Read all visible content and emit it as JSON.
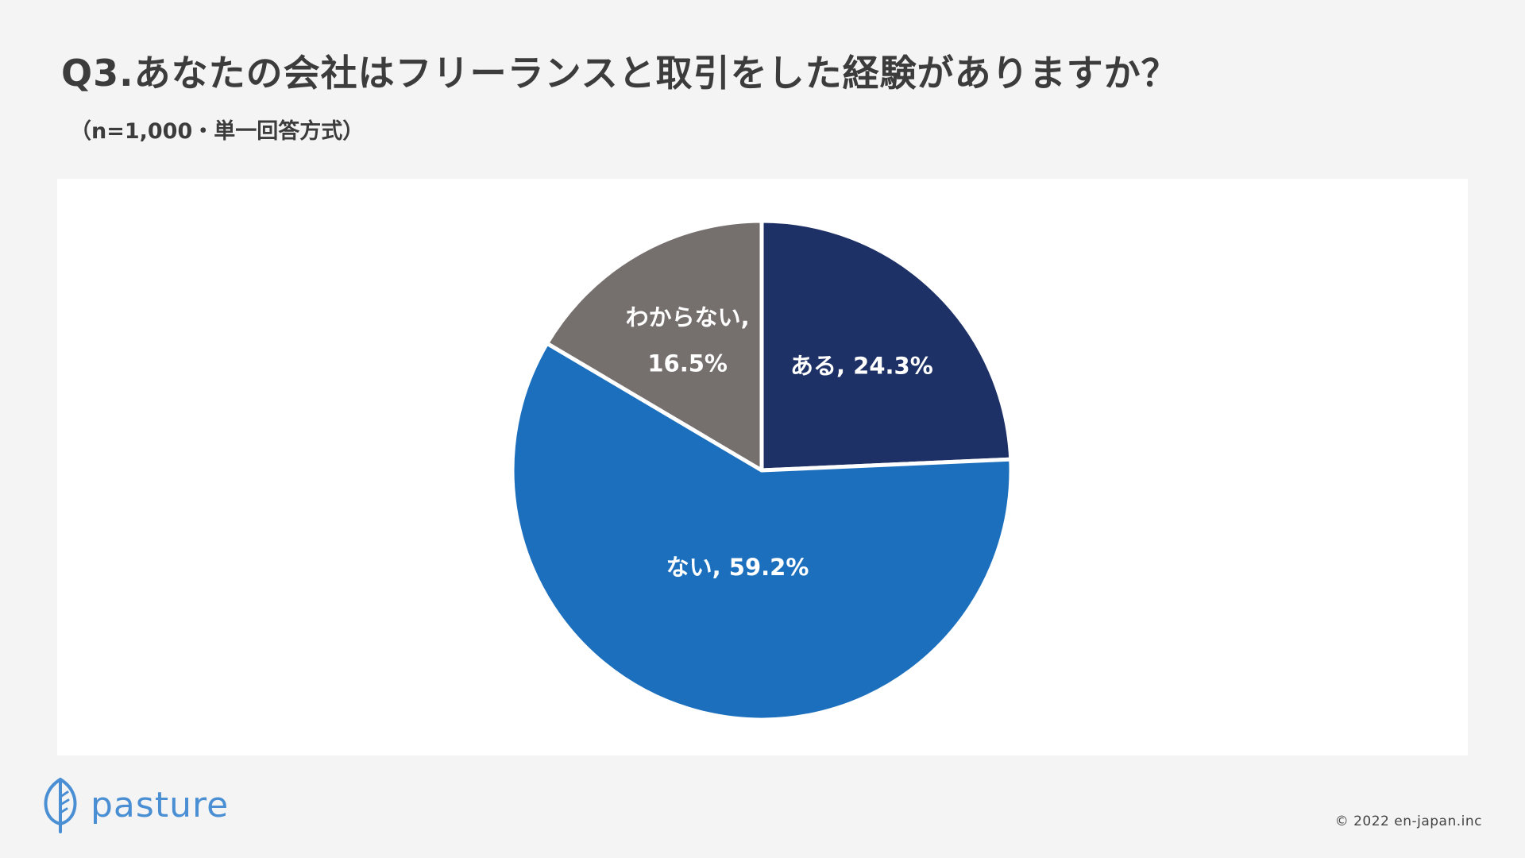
{
  "header": {
    "title": "Q3.あなたの会社はフリーランスと取引をした経験がありますか？",
    "subtitle": "（n=1,000・単一回答方式）"
  },
  "chart_data": {
    "type": "pie",
    "categories": [
      "ある",
      "ない",
      "わからない"
    ],
    "values": [
      24.3,
      59.2,
      16.5
    ],
    "unit": "%",
    "colors": [
      "#1e3166",
      "#1b6fbd",
      "#756f6e"
    ],
    "slice_labels": [
      [
        "ある, 24.3%"
      ],
      [
        "ない, 59.2%"
      ],
      [
        "わからない,",
        "16.5%"
      ]
    ],
    "start": "12 o'clock",
    "direction": "clockwise",
    "legend": "none"
  },
  "footer": {
    "logo_text": "pasture",
    "logo_icon": "leaf-icon",
    "copyright": "© 2022 en-japan.inc"
  }
}
